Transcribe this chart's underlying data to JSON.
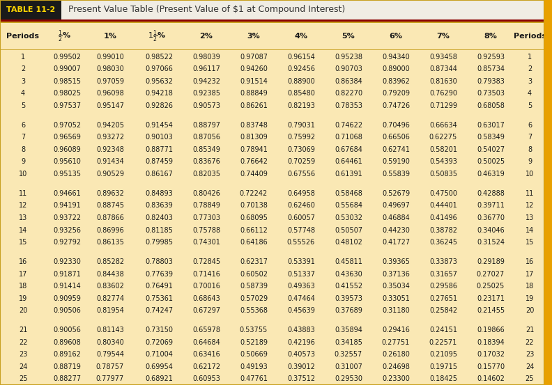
{
  "title_box_text": "TABLE 11-2",
  "title_text": "Present Value Table (Present Value of $1 at Compound Interest)",
  "rows": [
    [
      1,
      0.99502,
      0.9901,
      0.98522,
      0.98039,
      0.97087,
      0.96154,
      0.95238,
      0.9434,
      0.93458,
      0.92593,
      1
    ],
    [
      2,
      0.99007,
      0.9803,
      0.97066,
      0.96117,
      0.9426,
      0.92456,
      0.90703,
      0.89,
      0.87344,
      0.85734,
      2
    ],
    [
      3,
      0.98515,
      0.97059,
      0.95632,
      0.94232,
      0.91514,
      0.889,
      0.86384,
      0.83962,
      0.8163,
      0.79383,
      3
    ],
    [
      4,
      0.98025,
      0.96098,
      0.94218,
      0.92385,
      0.88849,
      0.8548,
      0.8227,
      0.79209,
      0.7629,
      0.73503,
      4
    ],
    [
      5,
      0.97537,
      0.95147,
      0.92826,
      0.90573,
      0.86261,
      0.82193,
      0.78353,
      0.74726,
      0.71299,
      0.68058,
      5
    ],
    [
      6,
      0.97052,
      0.94205,
      0.91454,
      0.88797,
      0.83748,
      0.79031,
      0.74622,
      0.70496,
      0.66634,
      0.63017,
      6
    ],
    [
      7,
      0.96569,
      0.93272,
      0.90103,
      0.87056,
      0.81309,
      0.75992,
      0.71068,
      0.66506,
      0.62275,
      0.58349,
      7
    ],
    [
      8,
      0.96089,
      0.92348,
      0.88771,
      0.85349,
      0.78941,
      0.73069,
      0.67684,
      0.62741,
      0.58201,
      0.54027,
      8
    ],
    [
      9,
      0.9561,
      0.91434,
      0.87459,
      0.83676,
      0.76642,
      0.70259,
      0.64461,
      0.5919,
      0.54393,
      0.50025,
      9
    ],
    [
      10,
      0.95135,
      0.90529,
      0.86167,
      0.82035,
      0.74409,
      0.67556,
      0.61391,
      0.55839,
      0.50835,
      0.46319,
      10
    ],
    [
      11,
      0.94661,
      0.89632,
      0.84893,
      0.80426,
      0.72242,
      0.64958,
      0.58468,
      0.52679,
      0.475,
      0.42888,
      11
    ],
    [
      12,
      0.94191,
      0.88745,
      0.83639,
      0.78849,
      0.70138,
      0.6246,
      0.55684,
      0.49697,
      0.44401,
      0.39711,
      12
    ],
    [
      13,
      0.93722,
      0.87866,
      0.82403,
      0.77303,
      0.68095,
      0.60057,
      0.53032,
      0.46884,
      0.41496,
      0.3677,
      13
    ],
    [
      14,
      0.93256,
      0.86996,
      0.81185,
      0.75788,
      0.66112,
      0.57748,
      0.50507,
      0.4423,
      0.38782,
      0.34046,
      14
    ],
    [
      15,
      0.92792,
      0.86135,
      0.79985,
      0.74301,
      0.64186,
      0.55526,
      0.48102,
      0.41727,
      0.36245,
      0.31524,
      15
    ],
    [
      16,
      0.9233,
      0.85282,
      0.78803,
      0.72845,
      0.62317,
      0.53391,
      0.45811,
      0.39365,
      0.33873,
      0.29189,
      16
    ],
    [
      17,
      0.91871,
      0.84438,
      0.77639,
      0.71416,
      0.60502,
      0.51337,
      0.4363,
      0.37136,
      0.31657,
      0.27027,
      17
    ],
    [
      18,
      0.91414,
      0.83602,
      0.76491,
      0.70016,
      0.58739,
      0.49363,
      0.41552,
      0.35034,
      0.29586,
      0.25025,
      18
    ],
    [
      19,
      0.90959,
      0.82774,
      0.75361,
      0.68643,
      0.57029,
      0.47464,
      0.39573,
      0.33051,
      0.27651,
      0.23171,
      19
    ],
    [
      20,
      0.90506,
      0.81954,
      0.74247,
      0.67297,
      0.55368,
      0.45639,
      0.37689,
      0.3118,
      0.25842,
      0.21455,
      20
    ],
    [
      21,
      0.90056,
      0.81143,
      0.7315,
      0.65978,
      0.53755,
      0.43883,
      0.35894,
      0.29416,
      0.24151,
      0.19866,
      21
    ],
    [
      22,
      0.89608,
      0.8034,
      0.72069,
      0.64684,
      0.52189,
      0.42196,
      0.34185,
      0.27751,
      0.22571,
      0.18394,
      22
    ],
    [
      23,
      0.89162,
      0.79544,
      0.71004,
      0.63416,
      0.50669,
      0.40573,
      0.32557,
      0.2618,
      0.21095,
      0.17032,
      23
    ],
    [
      24,
      0.88719,
      0.78757,
      0.69954,
      0.62172,
      0.49193,
      0.39012,
      0.31007,
      0.24698,
      0.19715,
      0.1577,
      24
    ],
    [
      25,
      0.88277,
      0.77977,
      0.68921,
      0.60953,
      0.47761,
      0.37512,
      0.2953,
      0.233,
      0.18425,
      0.14602,
      25
    ]
  ],
  "bg_color": "#F5DEB3",
  "title_bg": "#F0EDE4",
  "table_bg": "#FAE8B4",
  "title_box_bg": "#1A1A1A",
  "title_box_fg": "#FFD700",
  "dark_red_line": "#8B0000",
  "gold_line": "#C8A020",
  "right_stripe": "#E8A000",
  "text_color": "#1A1A1A",
  "header_text_color": "#1A1A1A"
}
